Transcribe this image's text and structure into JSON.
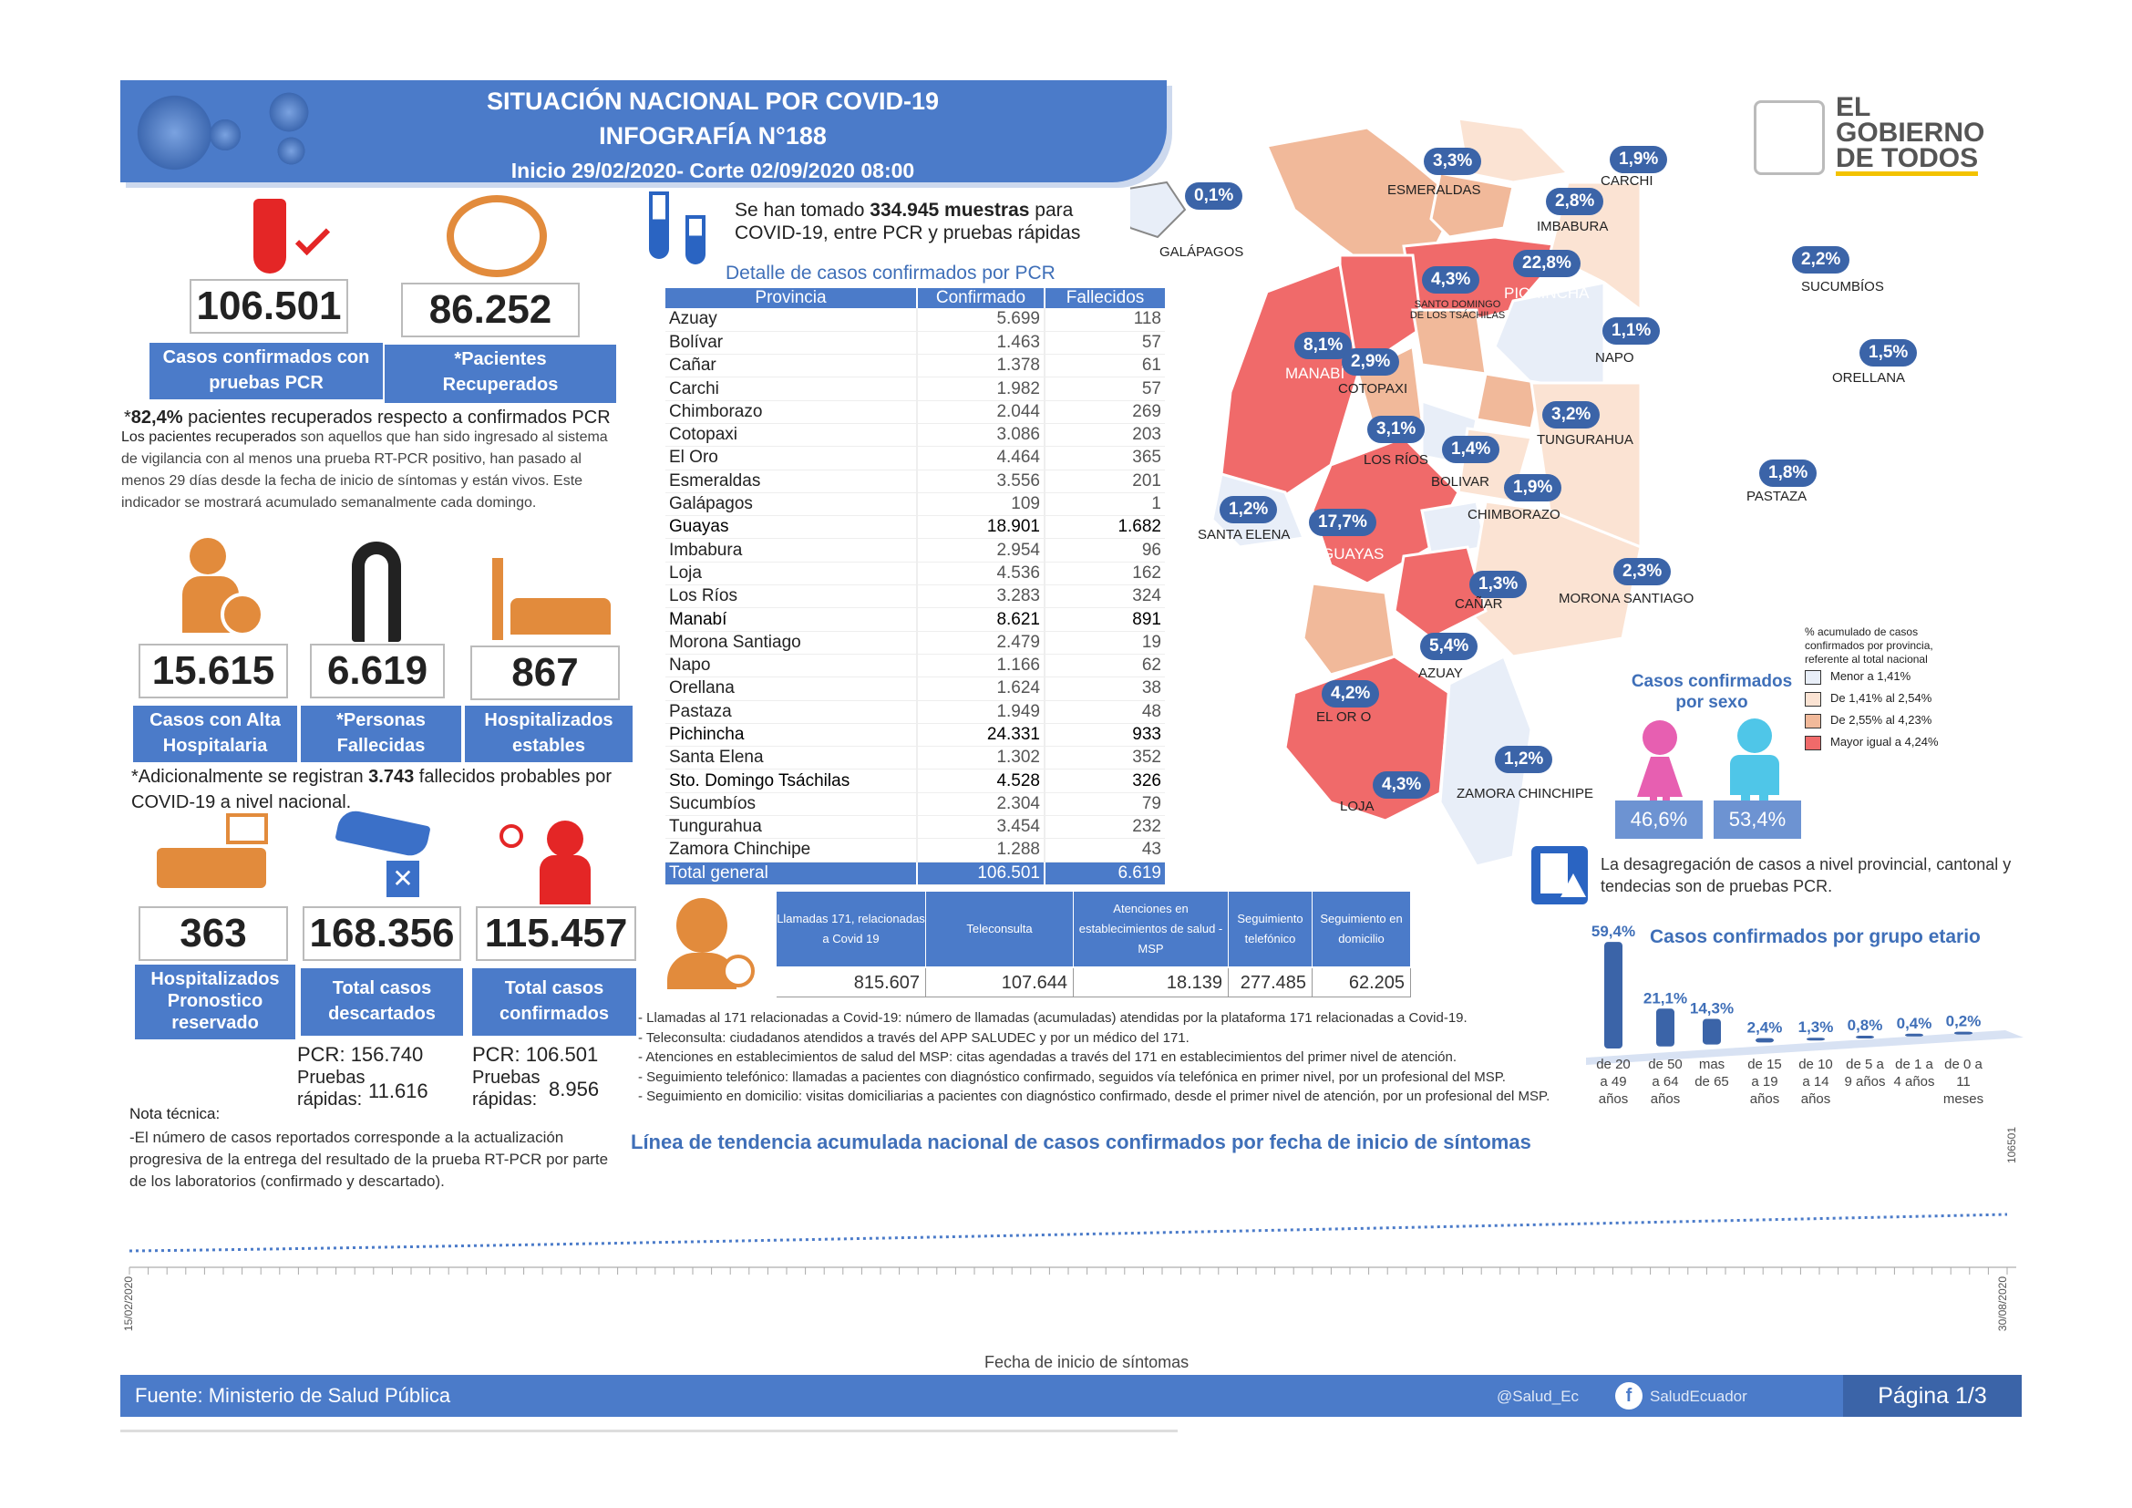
{
  "header": {
    "title": "SITUACIÓN NACIONAL POR  COVID-19",
    "subtitle": "INFOGRAFÍA N°188",
    "period": "Inicio 29/02/2020- Corte 02/09/2020 08:00"
  },
  "logo": {
    "line1": "EL",
    "line2": "GOBIERNO",
    "line3": "DE TODOS"
  },
  "stats": {
    "confirmed_pcr": {
      "value": "106.501",
      "label1": "Casos confirmados con",
      "label2": "pruebas PCR"
    },
    "recovered": {
      "value": "86.252",
      "label1": "*Pacientes",
      "label2": "Recuperados"
    },
    "recovered_note_pct": "82,4%",
    "recovered_note": "pacientes recuperados respecto a confirmados PCR",
    "recovered_def_bold": "Los pacientes recuperados",
    "recovered_def": "son aquellos que han sido ingresado al sistema de vigilancia con al menos una prueba RT-PCR positivo, han pasado al menos 29 días desde la fecha de inicio de síntomas y están vivos. Este indicador se mostrará acumulado semanalmente cada domingo.",
    "discharged": {
      "value": "15.615",
      "label1": "Casos con Alta",
      "label2": "Hospitalaria"
    },
    "deceased": {
      "value": "6.619",
      "label1": "*Personas",
      "label2": "Fallecidas"
    },
    "hospitalized_stable": {
      "value": "867",
      "label1": "Hospitalizados",
      "label2": "estables"
    },
    "probable_note_a": "*Adicionalmente se registran",
    "probable_value": "3.743",
    "probable_note_b": "fallecidos probables por",
    "probable_note_c": "COVID-19 a nivel nacional.",
    "hospitalized_reserved": {
      "value": "363",
      "label1": "Hospitalizados",
      "label2": "Pronostico",
      "label3": "reservado"
    },
    "discarded": {
      "value": "168.356",
      "label1": "Total casos",
      "label2": "descartados",
      "pcr_label": "PCR:",
      "pcr": "156.740",
      "rapid_label1": "Pruebas",
      "rapid_label2": "rápidas:",
      "rapid": "11.616"
    },
    "total_confirmed": {
      "value": "115.457",
      "label1": "Total casos",
      "label2": "confirmados",
      "pcr_label": "PCR:",
      "pcr": "106.501",
      "rapid_label1": "Pruebas",
      "rapid_label2": "rápidas:",
      "rapid": "8.956"
    }
  },
  "tech_note": {
    "title": "Nota técnica:",
    "text": "-El número de casos reportados corresponde a la actualización progresiva de la entrega del resultado de la prueba RT-PCR por parte de los laboratorios (confirmado y descartado)."
  },
  "samples": {
    "prefix": "Se han tomado",
    "value": "334.945",
    "suffix1": "muestras",
    "suffix2": "para",
    "line2": "COVID-19, entre PCR y pruebas rápidas"
  },
  "table": {
    "title": "Detalle de casos confirmados por PCR",
    "headers": [
      "Provincia",
      "Confirmado",
      "Fallecidos"
    ],
    "rows": [
      [
        "Azuay",
        "5.699",
        "118"
      ],
      [
        "Bolívar",
        "1.463",
        "57"
      ],
      [
        "Cañar",
        "1.378",
        "61"
      ],
      [
        "Carchi",
        "1.982",
        "57"
      ],
      [
        "Chimborazo",
        "2.044",
        "269"
      ],
      [
        "Cotopaxi",
        "3.086",
        "203"
      ],
      [
        "El Oro",
        "4.464",
        "365"
      ],
      [
        "Esmeraldas",
        "3.556",
        "201"
      ],
      [
        "Galápagos",
        "109",
        "1"
      ],
      [
        "Guayas",
        "18.901",
        "1.682"
      ],
      [
        "Imbabura",
        "2.954",
        "96"
      ],
      [
        "Loja",
        "4.536",
        "162"
      ],
      [
        "Los Ríos",
        "3.283",
        "324"
      ],
      [
        "Manabí",
        "8.621",
        "891"
      ],
      [
        "Morona Santiago",
        "2.479",
        "19"
      ],
      [
        "Napo",
        "1.166",
        "62"
      ],
      [
        "Orellana",
        "1.624",
        "38"
      ],
      [
        "Pastaza",
        "1.949",
        "48"
      ],
      [
        "Pichincha",
        "24.331",
        "933"
      ],
      [
        "Santa Elena",
        "1.302",
        "352"
      ],
      [
        "Sto. Domingo Tsáchilas",
        "4.528",
        "326"
      ],
      [
        "Sucumbíos",
        "2.304",
        "79"
      ],
      [
        "Tungurahua",
        "3.454",
        "232"
      ],
      [
        "Zamora Chinchipe",
        "1.288",
        "43"
      ]
    ],
    "total": [
      "Total general",
      "106.501",
      "6.619"
    ]
  },
  "calls": {
    "headers": [
      "Llamadas 171, relacionadas a Covid 19",
      "Teleconsulta",
      "Atenciones en establecimientos de salud - MSP",
      "Seguimiento telefónico",
      "Seguimiento en domicilio"
    ],
    "values": [
      "815.607",
      "107.644",
      "18.139",
      "277.485",
      "62.205"
    ],
    "notes": [
      "- Llamadas al 171 relacionadas a Covid-19: número de llamadas (acumuladas) atendidas por la plataforma 171 relacionadas a Covid-19.",
      "- Teleconsulta: ciudadanos atendidos a través del APP SALUDEC y por un médico del 171.",
      "- Atenciones en establecimientos de salud del MSP:  citas agendadas a través del 171 en establecimientos del primer nivel de atención.",
      "- Seguimiento telefónico: llamadas a pacientes con diagnóstico confirmado, seguidos vía telefónica en primer nivel, por un profesional del MSP.",
      "- Seguimiento en domicilio: visitas domiciliarias a pacientes con diagnóstico confirmado, desde el primer nivel de atención, por un profesional del MSP."
    ]
  },
  "map": {
    "provinces": [
      {
        "name": "ESMERALDAS",
        "pct": "3,3%"
      },
      {
        "name": "CARCHI",
        "pct": "1,9%"
      },
      {
        "name": "IMBABURA",
        "pct": "2,8%"
      },
      {
        "name": "GALÁPAGOS",
        "pct": "0,1%"
      },
      {
        "name": "SANTO DOMINGO DE LOS TSÁCHILAS",
        "pct": "4,3%"
      },
      {
        "name": "PICHINCHA",
        "pct": "22,8%"
      },
      {
        "name": "SUCUMBÍOS",
        "pct": "2,2%"
      },
      {
        "name": "MANABÍ",
        "pct": "8,1%"
      },
      {
        "name": "NAPO",
        "pct": "1,1%"
      },
      {
        "name": "ORELLANA",
        "pct": "1,5%"
      },
      {
        "name": "COTOPAXI",
        "pct": "2,9%"
      },
      {
        "name": "TUNGURAHUA",
        "pct": "3,2%"
      },
      {
        "name": "LOS RÍOS",
        "pct": "3,1%"
      },
      {
        "name": "BOLIVAR",
        "pct": "1,4%"
      },
      {
        "name": "CHIMBORAZO",
        "pct": "1,9%"
      },
      {
        "name": "PASTAZA",
        "pct": "1,8%"
      },
      {
        "name": "SANTA ELENA",
        "pct": "1,2%"
      },
      {
        "name": "GUAYAS",
        "pct": "17,7%"
      },
      {
        "name": "CAÑAR",
        "pct": "1,3%"
      },
      {
        "name": "MORONA SANTIAGO",
        "pct": "2,3%"
      },
      {
        "name": "AZUAY",
        "pct": "5,4%"
      },
      {
        "name": "EL OR O",
        "pct": "4,2%"
      },
      {
        "name": "LOJA",
        "pct": "4,3%"
      },
      {
        "name": "ZAMORA CHINCHIPE",
        "pct": "1,2%"
      }
    ],
    "legend_title": "% acumulado de casos confirmados por provincia, referente al total nacional",
    "legend": [
      {
        "label": "Menor a 1,41%",
        "color": "#e8eef8"
      },
      {
        "label": "De 1,41% al 2,54%",
        "color": "#fbe3d3"
      },
      {
        "label": "De 2,55% al 4,23%",
        "color": "#f1b99a"
      },
      {
        "label": "Mayor igual a 4,24%",
        "color": "#f06a6a"
      }
    ]
  },
  "sex": {
    "title1": "Casos confirmados",
    "title2": "por sexo",
    "female": "46,6%",
    "male": "53,4%"
  },
  "disaggregation_note": "La desagregación de casos a nivel provincial, cantonal y tendecias son  de pruebas PCR.",
  "age_chart": {
    "chart_data": {
      "type": "bar",
      "title": "Casos confirmados por grupo etario",
      "categories": [
        "de 20 a 49 años",
        "de 50 a 64 años",
        "mas de 65",
        "de 15 a 19 años",
        "de 10 a 14 años",
        "de 5 a 9 años",
        "de 1 a 4 años",
        "de 0 a 11 meses"
      ],
      "cat_lines": [
        [
          "de 20",
          "a 49",
          "años"
        ],
        [
          "de 50",
          "a 64",
          "años"
        ],
        [
          "mas",
          "de 65"
        ],
        [
          "de 15",
          "a 19",
          "años"
        ],
        [
          "de 10",
          "a 14",
          "años"
        ],
        [
          "de 5 a",
          "9 años"
        ],
        [
          "de 1 a",
          "4 años"
        ],
        [
          "de 0 a",
          "11",
          "meses"
        ]
      ],
      "values": [
        59.4,
        21.1,
        14.3,
        2.4,
        1.3,
        0.8,
        0.4,
        0.2
      ],
      "labels": [
        "59,4%",
        "21,1%",
        "14,3%",
        "2,4%",
        "1,3%",
        "0,8%",
        "0,4%",
        "0,2%"
      ]
    }
  },
  "trend": {
    "title": "Línea de tendencia acumulada nacional de casos confirmados por fecha de inicio de síntomas",
    "xlabel": "Fecha de inicio de síntomas",
    "start_label": "15/02/2020",
    "end_label": "30/08/2020",
    "final_value": "106501"
  },
  "footer": {
    "source_label": "Fuente:",
    "source": "Ministerio de Salud Pública",
    "twitter": "@Salud_Ec",
    "facebook": "SaludEcuador",
    "page": "Página 1/3"
  }
}
